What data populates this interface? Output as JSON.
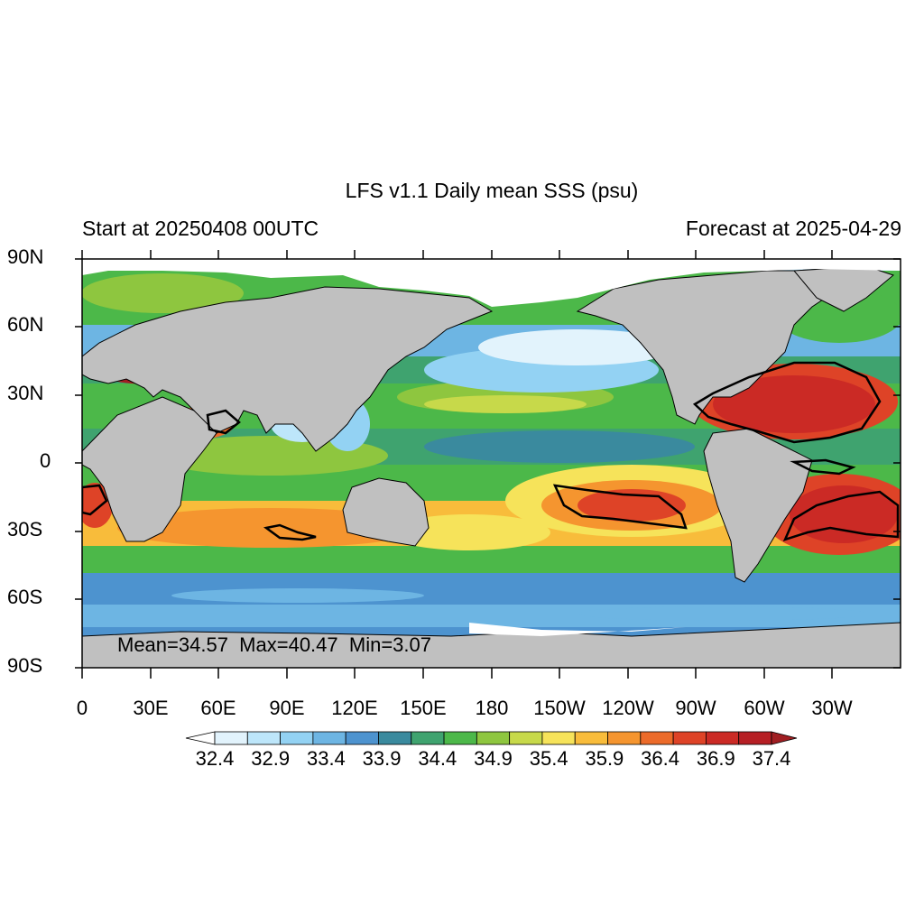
{
  "header": {
    "title": "LFS v1.1 Daily mean SSS (psu)",
    "left_subtitle": "Start at 20250408 00UTC",
    "right_subtitle": "Forecast at 2025-04-29"
  },
  "stats": {
    "mean_label": "Mean=34.57",
    "max_label": "Max=40.47",
    "min_label": "Min=3.07"
  },
  "axes": {
    "lat_labels": [
      "90N",
      "60N",
      "30N",
      "0",
      "30S",
      "60S",
      "90S"
    ],
    "lon_labels": [
      "0",
      "30E",
      "60E",
      "90E",
      "120E",
      "150E",
      "180",
      "150W",
      "120W",
      "90W",
      "60W",
      "30W"
    ]
  },
  "colorbar": {
    "levels": [
      "32.4",
      "32.9",
      "33.4",
      "33.9",
      "34.4",
      "34.9",
      "35.4",
      "35.9",
      "36.4",
      "36.9",
      "37.4"
    ],
    "colors": [
      "#ffffff",
      "#e2f3fc",
      "#bde6fa",
      "#93d2f3",
      "#6db5e3",
      "#4d93cf",
      "#3a8a9e",
      "#3fa36f",
      "#4cb849",
      "#8ec63f",
      "#c7d94a",
      "#f6e35a",
      "#f8bc3b",
      "#f5952f",
      "#ec6b2a",
      "#de4327",
      "#cb2a25",
      "#b61f24",
      "#a01e22"
    ]
  },
  "colors": {
    "land": "#c0c0c0",
    "ice": "#ffffff",
    "contour": "#000000"
  }
}
